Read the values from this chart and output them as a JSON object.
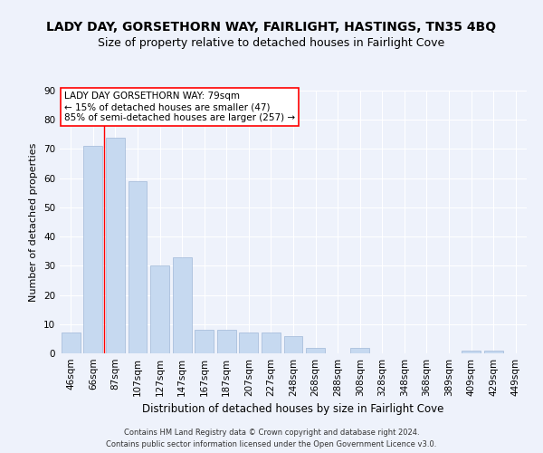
{
  "title": "LADY DAY, GORSETHORN WAY, FAIRLIGHT, HASTINGS, TN35 4BQ",
  "subtitle": "Size of property relative to detached houses in Fairlight Cove",
  "xlabel": "Distribution of detached houses by size in Fairlight Cove",
  "ylabel": "Number of detached properties",
  "categories": [
    "46sqm",
    "66sqm",
    "87sqm",
    "107sqm",
    "127sqm",
    "147sqm",
    "167sqm",
    "187sqm",
    "207sqm",
    "227sqm",
    "248sqm",
    "268sqm",
    "288sqm",
    "308sqm",
    "328sqm",
    "348sqm",
    "368sqm",
    "389sqm",
    "409sqm",
    "429sqm",
    "449sqm"
  ],
  "values": [
    7,
    71,
    74,
    59,
    30,
    33,
    8,
    8,
    7,
    7,
    6,
    2,
    0,
    2,
    0,
    0,
    0,
    0,
    1,
    1,
    0
  ],
  "bar_color": "#c6d9f0",
  "bar_edge_color": "#a0b8d8",
  "ylim": [
    0,
    90
  ],
  "yticks": [
    0,
    10,
    20,
    30,
    40,
    50,
    60,
    70,
    80,
    90
  ],
  "red_line_x": 1.5,
  "red_line_label": "LADY DAY GORSETHORN WAY: 79sqm",
  "annotation_line1": "← 15% of detached houses are smaller (47)",
  "annotation_line2": "85% of semi-detached houses are larger (257) →",
  "footer1": "Contains HM Land Registry data © Crown copyright and database right 2024.",
  "footer2": "Contains public sector information licensed under the Open Government Licence v3.0.",
  "background_color": "#eef2fb",
  "plot_background_color": "#eef2fb",
  "grid_color": "#ffffff",
  "title_fontsize": 10,
  "subtitle_fontsize": 9,
  "xlabel_fontsize": 8.5,
  "ylabel_fontsize": 8,
  "tick_fontsize": 7.5,
  "annotation_fontsize": 7.5,
  "footer_fontsize": 6
}
